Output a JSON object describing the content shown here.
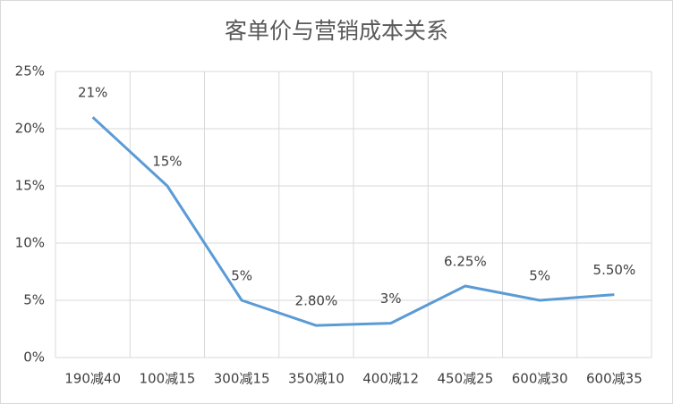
{
  "chart_data": {
    "type": "line",
    "title": "客单价与营销成本关系",
    "categories": [
      "190减40",
      "100减15",
      "300减15",
      "350减10",
      "400减12",
      "450减25",
      "600减30",
      "600减35"
    ],
    "values": [
      21,
      15,
      5,
      2.8,
      3,
      6.25,
      5,
      5.5
    ],
    "value_labels": [
      "21%",
      "15%",
      "5%",
      "2.80%",
      "3%",
      "6.25%",
      "5%",
      "5.50%"
    ],
    "color": "#5b9bd5",
    "ylim": [
      0,
      25
    ],
    "yticks": [
      {
        "value": 0,
        "label": "0%"
      },
      {
        "value": 5,
        "label": "5%"
      },
      {
        "value": 10,
        "label": "10%"
      },
      {
        "value": 15,
        "label": "15%"
      },
      {
        "value": 20,
        "label": "20%"
      },
      {
        "value": 25,
        "label": "25%"
      }
    ],
    "grid": true
  }
}
